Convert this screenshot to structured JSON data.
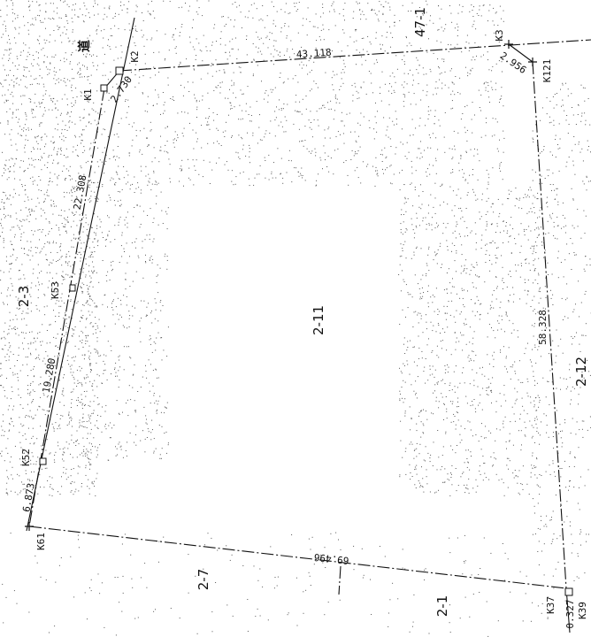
{
  "road_label": "道",
  "parcels": {
    "center": "2-11",
    "left": "2-3",
    "top_right": "47-1",
    "right": "2-12",
    "bottom_left": "2-7",
    "bottom": "2-1"
  },
  "markers": {
    "k1": "K1",
    "k2": "K2",
    "k3": "K3",
    "k121": "K121",
    "k53": "K53",
    "k52": "K52",
    "k61": "K61",
    "k37": "K37",
    "k39": "K39"
  },
  "distances": {
    "top": "43.118",
    "k2_k1": "2.730",
    "k3_k121": "2.956",
    "left_upper": "22.308",
    "left_middle": "19.280",
    "left_lower": "6.873",
    "right": "58.328",
    "bottom": "69.496",
    "bottom_right": "0.327"
  },
  "colors": {
    "line": "#111111",
    "stipple": "#555555",
    "background": "#ffffff"
  }
}
